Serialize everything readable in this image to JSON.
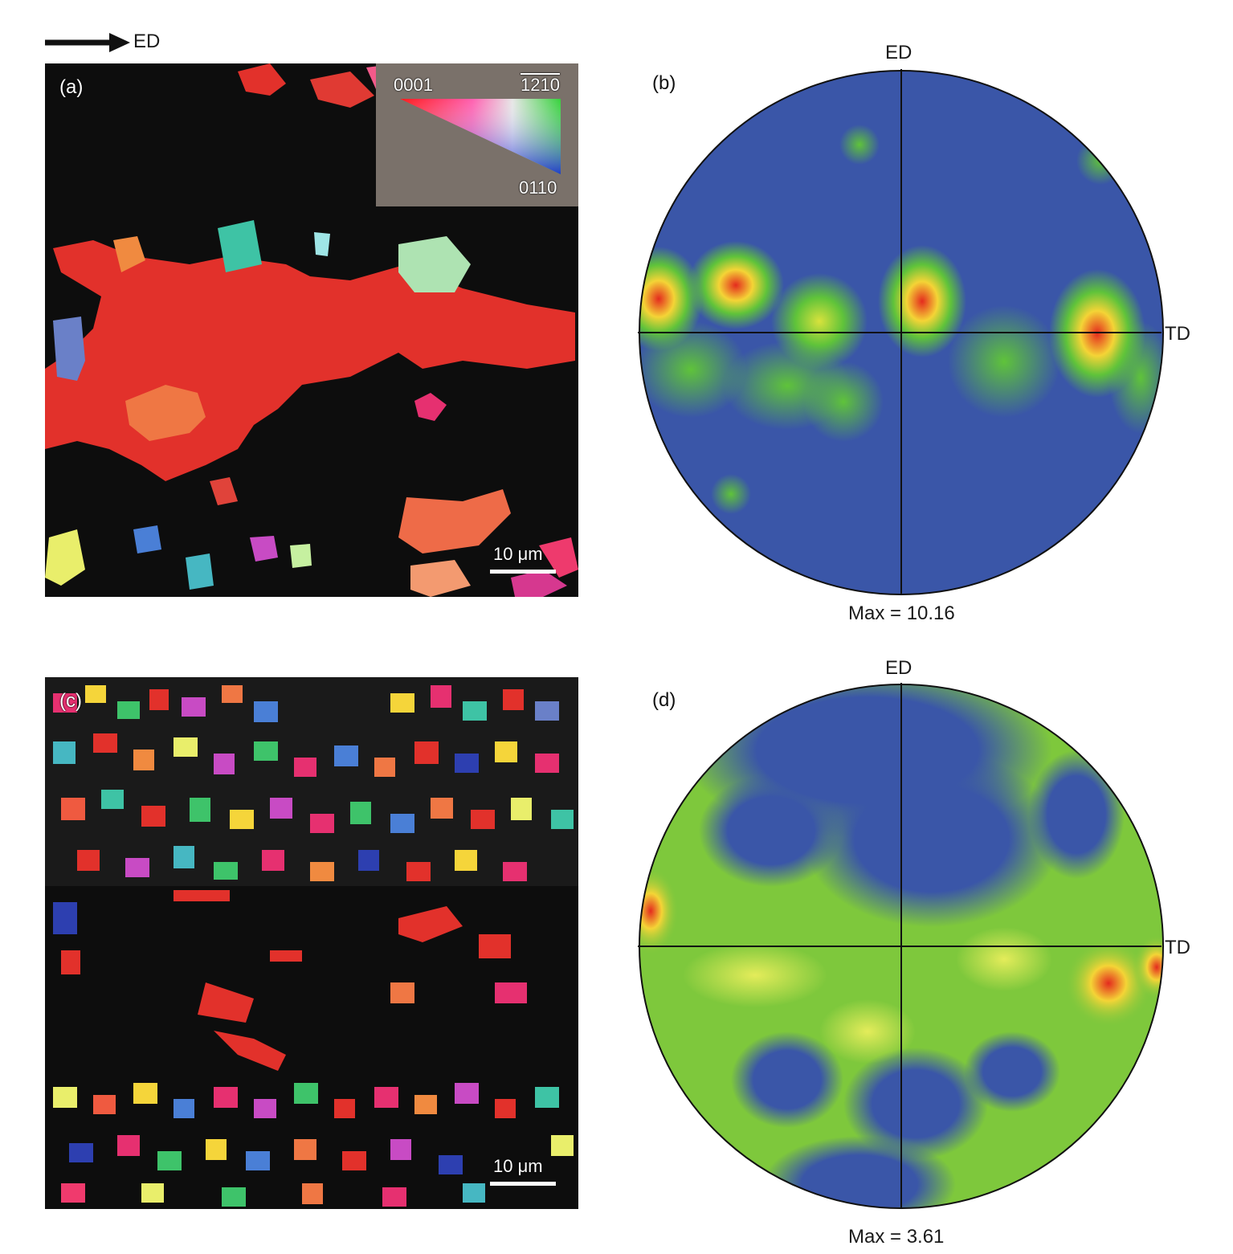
{
  "direction_arrow": {
    "label": "ED"
  },
  "panels": {
    "a": {
      "letter": "(a)",
      "scale_bar": "10 μm"
    },
    "b": {
      "letter": "(b)",
      "top": "ED",
      "right": "TD",
      "max": "Max = 10.16"
    },
    "c": {
      "letter": "(c)",
      "scale_bar": "10 μm"
    },
    "d": {
      "letter": "(d)",
      "top": "ED",
      "right": "TD",
      "max": "Max = 3.61"
    }
  },
  "legend": {
    "corner_0001": "0001",
    "corner_1210": "1210",
    "corner_0110": "0110"
  },
  "colors": {
    "map_background": "#0d0d0d",
    "legend_background": "#7a716a",
    "pf_low": "#3a56a8",
    "pf_mid": "#5fc33a",
    "pf_high": "#e42b1e"
  }
}
